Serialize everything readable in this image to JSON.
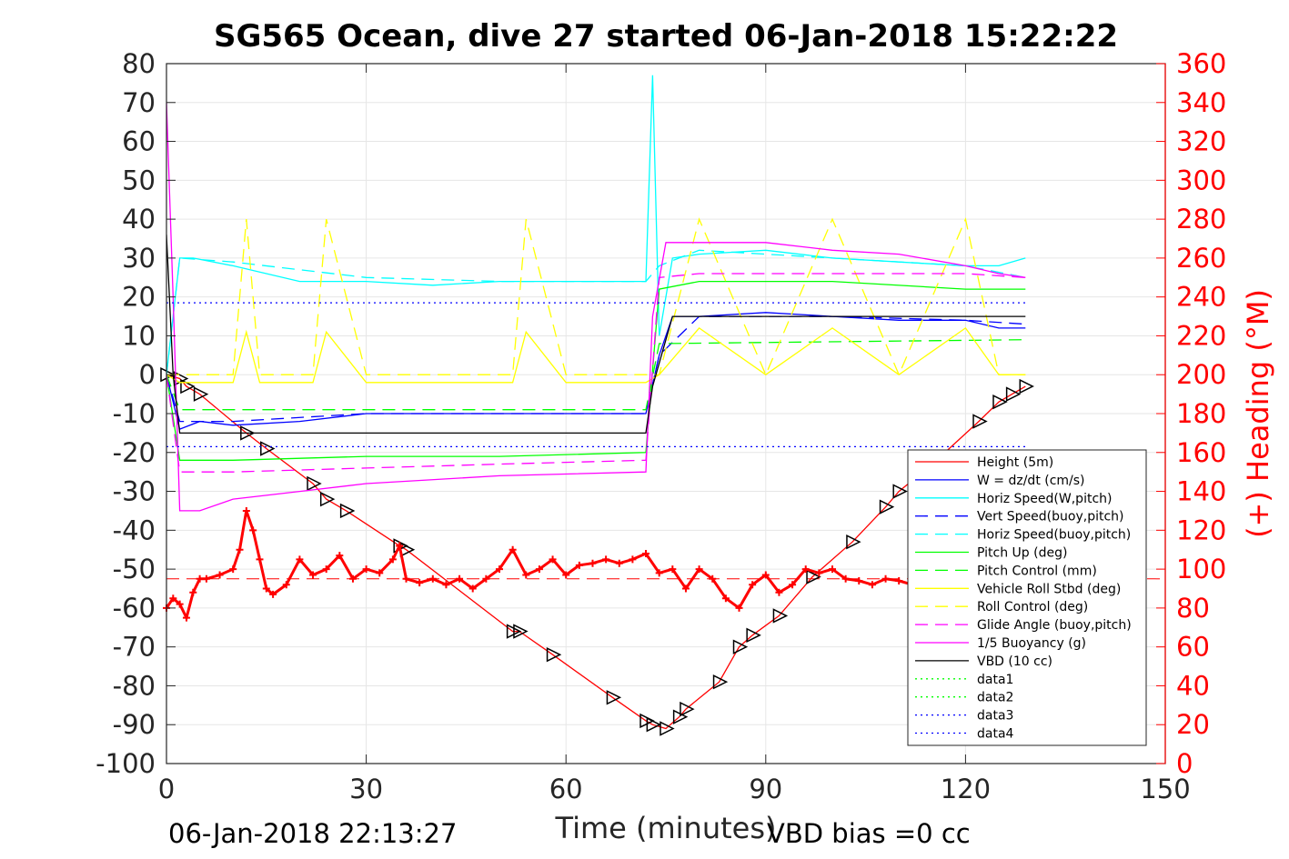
{
  "chart_data": {
    "type": "line",
    "title": "SG565 Ocean, dive 27 started 06-Jan-2018 15:22:22",
    "xlabel": "Time (minutes)",
    "ylabel": "",
    "y2label": "(+) Heading (°M)",
    "xlim": [
      0,
      150
    ],
    "ylim": [
      -100,
      80
    ],
    "y2lim": [
      0,
      360
    ],
    "x_ticks": [
      "0",
      "30",
      "60",
      "90",
      "120",
      "150"
    ],
    "y_ticks": [
      "80",
      "70",
      "60",
      "50",
      "40",
      "30",
      "20",
      "10",
      "0",
      "-10",
      "-20",
      "-30",
      "-40",
      "-50",
      "-60",
      "-70",
      "-80",
      "-90",
      "-100"
    ],
    "y2_ticks": [
      "360",
      "340",
      "320",
      "300",
      "280",
      "260",
      "240",
      "220",
      "200",
      "180",
      "160",
      "140",
      "120",
      "100",
      "80",
      "60",
      "40",
      "20",
      "0"
    ],
    "grid": true,
    "legend_position": "bottom-right",
    "footer_left": "06-Jan-2018 22:13:27",
    "footer_right": "VBD bias =0 cc",
    "series": [
      {
        "name": "Height (5m)",
        "color": "#ff0000",
        "style": "solid",
        "marker": "triangle",
        "x": [
          0,
          2,
          3,
          5,
          12,
          15,
          22,
          24,
          27,
          35,
          36,
          52,
          53,
          58,
          67,
          72,
          73,
          75,
          77,
          78,
          83,
          86,
          88,
          92,
          97,
          103,
          108,
          110,
          115,
          122,
          125,
          127,
          129
        ],
        "y": [
          0,
          -1,
          -3,
          -5,
          -15,
          -19,
          -28,
          -32,
          -35,
          -44,
          -45,
          -66,
          -66,
          -72,
          -83,
          -89,
          -90,
          -91,
          -88,
          -86,
          -79,
          -70,
          -67,
          -62,
          -52,
          -43,
          -34,
          -30,
          -23,
          -12,
          -7,
          -5,
          -3
        ]
      },
      {
        "name": "W = dz/dt (cm/s)",
        "color": "#0000ff",
        "style": "solid",
        "x": [
          0,
          2,
          5,
          10,
          20,
          30,
          40,
          50,
          60,
          70,
          72,
          74,
          76,
          80,
          90,
          100,
          110,
          120,
          125,
          129
        ],
        "y": [
          0,
          -14,
          -12,
          -13,
          -12,
          -10,
          -10,
          -10,
          -10,
          -10,
          -10,
          5,
          15,
          15,
          16,
          15,
          14,
          14,
          12,
          12
        ]
      },
      {
        "name": "Horiz Speed(W,pitch)",
        "color": "#00ffff",
        "style": "solid",
        "x": [
          0,
          2,
          4,
          10,
          20,
          30,
          40,
          50,
          60,
          70,
          72,
          73,
          74,
          76,
          80,
          90,
          100,
          110,
          120,
          125,
          129
        ],
        "y": [
          0,
          30,
          30,
          28,
          24,
          24,
          23,
          24,
          24,
          24,
          24,
          77,
          10,
          30,
          31,
          32,
          30,
          29,
          28,
          28,
          30
        ]
      },
      {
        "name": "Vert Speed(buoy,pitch)",
        "color": "#0000ff",
        "style": "dashed",
        "x": [
          0,
          2,
          10,
          30,
          50,
          72,
          74,
          80,
          100,
          120,
          129
        ],
        "y": [
          0,
          -12,
          -12,
          -10,
          -10,
          -10,
          5,
          15,
          15,
          14,
          13
        ]
      },
      {
        "name": "Horiz Speed(buoy,pitch)",
        "color": "#00ffff",
        "style": "dashed",
        "x": [
          0,
          2,
          10,
          30,
          50,
          72,
          74,
          80,
          100,
          120,
          129
        ],
        "y": [
          0,
          30,
          29,
          25,
          24,
          24,
          28,
          32,
          30,
          28,
          25
        ]
      },
      {
        "name": "Pitch Up (deg)",
        "color": "#00ff00",
        "style": "solid",
        "x": [
          0,
          2,
          10,
          30,
          50,
          72,
          74,
          80,
          100,
          120,
          129
        ],
        "y": [
          0,
          -22,
          -22,
          -21,
          -21,
          -20,
          22,
          24,
          24,
          22,
          22
        ]
      },
      {
        "name": "Pitch Control (mm)",
        "color": "#00ff00",
        "style": "dashed",
        "x": [
          0,
          2,
          72,
          74,
          129
        ],
        "y": [
          0,
          -9,
          -9,
          8,
          9
        ]
      },
      {
        "name": "Vehicle Roll Stbd (deg)",
        "color": "#ffff00",
        "style": "solid",
        "x": [
          0,
          2,
          10,
          12,
          14,
          22,
          24,
          30,
          40,
          52,
          54,
          60,
          70,
          72,
          74,
          80,
          90,
          100,
          110,
          120,
          125,
          129
        ],
        "y": [
          0,
          -2,
          -2,
          11,
          -2,
          -2,
          11,
          -2,
          -2,
          -2,
          11,
          -2,
          -2,
          -2,
          0,
          12,
          0,
          12,
          0,
          12,
          0,
          0
        ]
      },
      {
        "name": "Roll Control (deg)",
        "color": "#ffff00",
        "style": "dashed",
        "x": [
          0,
          2,
          10,
          12,
          14,
          22,
          24,
          30,
          52,
          54,
          60,
          72,
          74,
          80,
          90,
          100,
          110,
          120,
          125,
          129
        ],
        "y": [
          0,
          0,
          0,
          40,
          0,
          0,
          40,
          0,
          0,
          40,
          0,
          0,
          0,
          40,
          0,
          40,
          0,
          40,
          0,
          0
        ]
      },
      {
        "name": "Glide Angle (buoy,pitch)",
        "color": "#ff00ff",
        "style": "dashed",
        "x": [
          0,
          2,
          10,
          30,
          50,
          72,
          74,
          80,
          100,
          120,
          129
        ],
        "y": [
          0,
          -25,
          -25,
          -24,
          -23,
          -22,
          25,
          26,
          26,
          26,
          25
        ]
      },
      {
        "name": "1/5 Buoyancy (g)",
        "color": "#ff00ff",
        "style": "solid",
        "x": [
          0,
          1,
          2,
          5,
          10,
          20,
          30,
          50,
          72,
          73,
          75,
          80,
          90,
          100,
          110,
          120,
          125,
          129
        ],
        "y": [
          70,
          20,
          -35,
          -35,
          -32,
          -30,
          -28,
          -26,
          -25,
          15,
          34,
          34,
          34,
          32,
          31,
          28,
          26,
          25
        ]
      },
      {
        "name": "VBD (10 cc)",
        "color": "#000000",
        "style": "solid",
        "x": [
          0,
          1,
          2,
          10,
          30,
          50,
          72,
          73,
          76,
          80,
          100,
          120,
          129
        ],
        "y": [
          36,
          0,
          -15,
          -15,
          -15,
          -15,
          -15,
          -3,
          15,
          15,
          15,
          15,
          15
        ]
      },
      {
        "name": "data1",
        "color": "#00ff00",
        "style": "dotted",
        "x": [],
        "y": []
      },
      {
        "name": "data2",
        "color": "#00ff00",
        "style": "dotted",
        "x": [],
        "y": []
      },
      {
        "name": "data3",
        "color": "#0000ff",
        "style": "dotted",
        "x": [
          0,
          129
        ],
        "y": [
          18.5,
          18.5
        ]
      },
      {
        "name": "data4",
        "color": "#0000ff",
        "style": "dotted",
        "x": [
          0,
          129
        ],
        "y": [
          -18.5,
          -18.5
        ]
      }
    ],
    "heading_series": {
      "name": "Heading",
      "color": "#ff0000",
      "marker": "+",
      "axis": "right",
      "x": [
        0,
        1,
        2,
        3,
        4,
        5,
        6,
        8,
        10,
        11,
        12,
        13,
        14,
        15,
        16,
        18,
        20,
        22,
        24,
        26,
        28,
        30,
        32,
        34,
        35,
        36,
        38,
        40,
        42,
        44,
        46,
        48,
        50,
        52,
        54,
        56,
        58,
        60,
        62,
        64,
        66,
        68,
        70,
        72,
        74,
        76,
        78,
        80,
        82,
        84,
        86,
        88,
        90,
        92,
        94,
        96,
        98,
        100,
        102,
        104,
        106,
        108,
        110,
        112
      ],
      "y": [
        80,
        85,
        82,
        75,
        88,
        95,
        95,
        97,
        100,
        110,
        130,
        120,
        105,
        90,
        87,
        92,
        105,
        97,
        100,
        107,
        95,
        100,
        98,
        105,
        112,
        95,
        93,
        95,
        92,
        95,
        90,
        95,
        100,
        110,
        97,
        100,
        105,
        97,
        102,
        103,
        105,
        103,
        105,
        108,
        98,
        100,
        90,
        100,
        95,
        85,
        80,
        92,
        97,
        88,
        92,
        100,
        98,
        100,
        95,
        94,
        92,
        95,
        94,
        92
      ]
    },
    "reference_lines": [
      {
        "name": "heading-ref",
        "color": "#ff0000",
        "style": "dashed",
        "axis": "right",
        "y": 95
      }
    ]
  }
}
